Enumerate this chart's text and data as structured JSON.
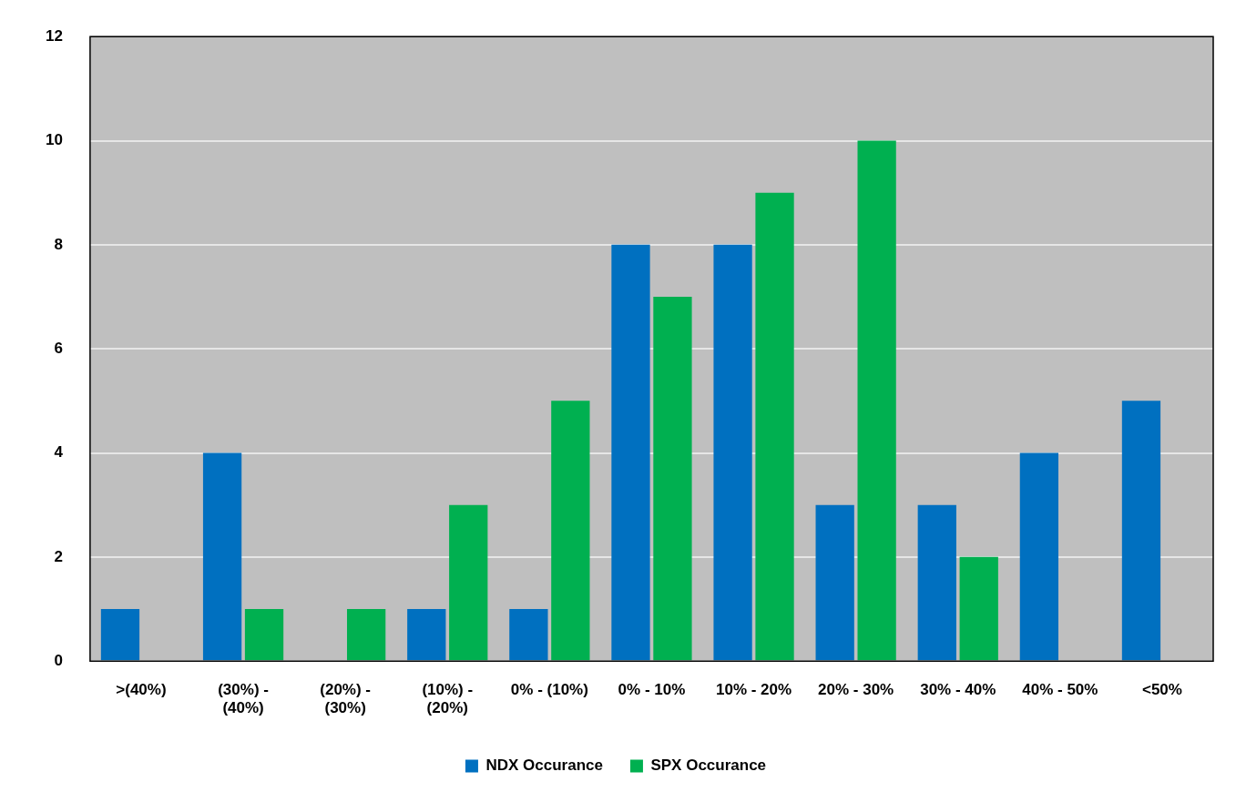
{
  "chart_data": {
    "type": "bar",
    "categories": [
      ">(40%)",
      "(30%) - (40%)",
      "(20%) - (30%)",
      "(10%) - (20%)",
      "0% - (10%)",
      "0% - 10%",
      "10% - 20%",
      "20% - 30%",
      "30% - 40%",
      "40% - 50%",
      "<50%"
    ],
    "series": [
      {
        "name": "NDX Occurance",
        "color": "#0070c0",
        "values": [
          1,
          4,
          0,
          1,
          1,
          8,
          8,
          3,
          3,
          4,
          5
        ]
      },
      {
        "name": "SPX Occurance",
        "color": "#00b050",
        "values": [
          0,
          1,
          1,
          3,
          5,
          7,
          9,
          10,
          2,
          0,
          0
        ]
      }
    ],
    "ylim": [
      0,
      12
    ],
    "yticks": [
      0,
      2,
      4,
      6,
      8,
      10,
      12
    ],
    "grid": "y",
    "legend": "bottom"
  }
}
